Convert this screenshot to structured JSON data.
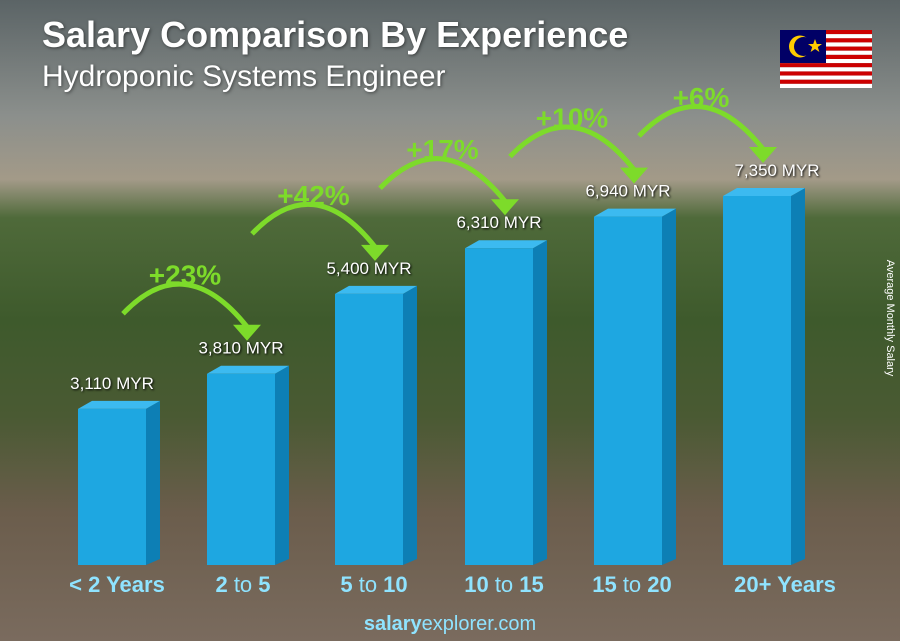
{
  "title": "Salary Comparison By Experience",
  "subtitle": "Hydroponic Systems Engineer",
  "footer": {
    "bold": "salary",
    "rest": "explorer.com"
  },
  "flag": "malaysia-flag",
  "chart_data": {
    "type": "bar",
    "ylabel": "Average Monthly Salary",
    "categories": [
      [
        "< 2 Years",
        "",
        ""
      ],
      [
        "2",
        " to ",
        "5"
      ],
      [
        "5",
        " to ",
        "10"
      ],
      [
        "10",
        " to ",
        "15"
      ],
      [
        "15",
        " to ",
        "20"
      ],
      [
        "20+ Years",
        "",
        ""
      ]
    ],
    "values": [
      3110,
      3810,
      5400,
      6310,
      6940,
      7350
    ],
    "value_labels": [
      "3,110 MYR",
      "3,810 MYR",
      "5,400 MYR",
      "6,310 MYR",
      "6,940 MYR",
      "7,350 MYR"
    ],
    "changes": [
      "+23%",
      "+42%",
      "+17%",
      "+10%",
      "+6%"
    ],
    "unit": "MYR",
    "colors": {
      "bar": "#1ea7e1",
      "bar_side": "#0d7fb5",
      "bar_top": "#3cbaf0",
      "change": "#7ddb2a",
      "category": "#8fe3ff"
    }
  }
}
